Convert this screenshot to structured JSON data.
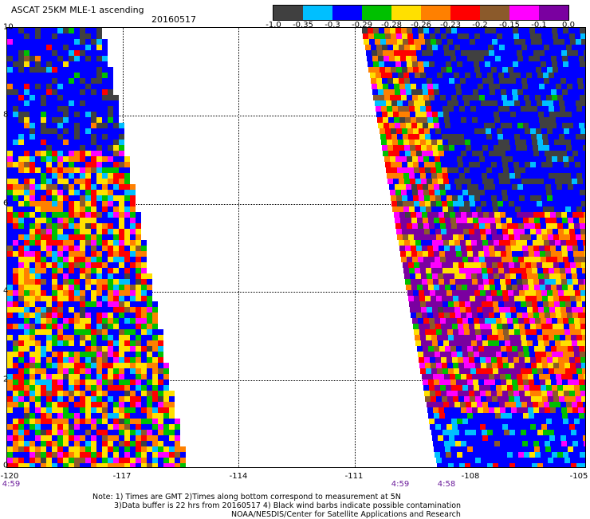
{
  "header": {
    "title": "ASCAT 25KM MLE-1 ascending",
    "date": "20160517"
  },
  "colorbar": {
    "colors": [
      "#404040",
      "#00bfff",
      "#0000ff",
      "#00c000",
      "#ffe000",
      "#ff8000",
      "#ff0000",
      "#8b5a2b",
      "#ff00ff",
      "#7a00a0"
    ],
    "ticks": [
      "-1.0",
      "-0.35",
      "-0.3",
      "-0.29",
      "-0.28",
      "-0.26",
      "-0.23",
      "-0.2",
      "-0.15",
      "-0.1",
      "0.0"
    ]
  },
  "map": {
    "x_ticks": [
      "-120",
      "-117",
      "-114",
      "-111",
      "-108",
      "-105"
    ],
    "y_ticks": [
      "10",
      "8",
      "6",
      "4",
      "2",
      "0"
    ],
    "swath_times": [
      "4:59",
      "4:59",
      "4:58"
    ]
  },
  "notes": {
    "line1": "Note: 1) Times are GMT 2)Times along bottom correspond to measurement at 5N",
    "line2": "3)Data buffer is 22 hrs from 20160517 4) Black wind barbs indicate possible contamination",
    "line3": "NOAA/NESDIS/Center for Satellite Applications and Research"
  }
}
